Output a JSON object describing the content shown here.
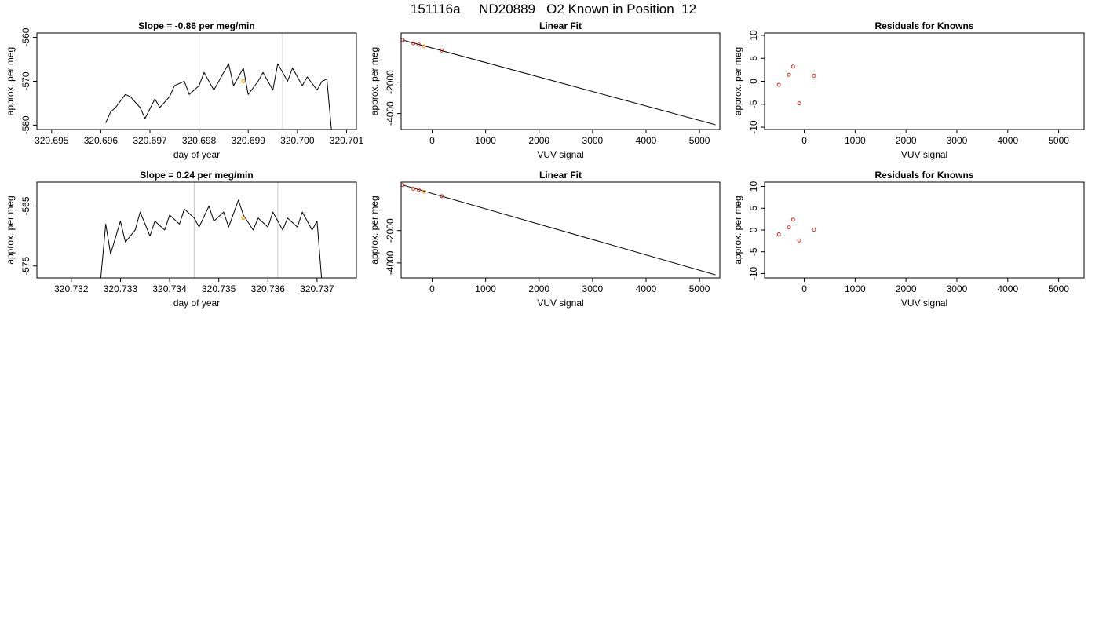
{
  "page_title": "151116a     ND20889   O2 Known in Position  12",
  "colors": {
    "line": "#000000",
    "marker_known": "#d62d20",
    "marker_unknown": "#ff8c00",
    "window_line": "#c8c8c8"
  },
  "chart_data": [
    {
      "id": "ts1",
      "type": "line",
      "title": "Slope =  -0.86  per meg/min",
      "xlabel": "day of year",
      "ylabel": "approx. per meg",
      "xlim": [
        320.6947,
        320.7012
      ],
      "ylim": [
        -581,
        -559
      ],
      "xticks": [
        320.695,
        320.696,
        320.697,
        320.698,
        320.699,
        320.7,
        320.701
      ],
      "xtick_labels": [
        "320.695",
        "320.696",
        "320.697",
        "320.698",
        "320.699",
        "320.700",
        "320.701"
      ],
      "yticks": [
        -580,
        -570,
        -560
      ],
      "ytick_labels": [
        "-580",
        "-570",
        "-560"
      ],
      "window_lines": [
        320.698,
        320.6997
      ],
      "series": [
        {
          "color": "#000000",
          "x": [
            320.6961,
            320.6962,
            320.6963,
            320.6965,
            320.6966,
            320.6968,
            320.6969,
            320.6971,
            320.6972,
            320.6974,
            320.6975,
            320.6977,
            320.6978,
            320.698,
            320.6981,
            320.6983,
            320.6984,
            320.6986,
            320.6987,
            320.6989,
            320.699,
            320.6992,
            320.6993,
            320.6995,
            320.6996,
            320.6998,
            320.6999,
            320.7001,
            320.7002,
            320.7004,
            320.7005,
            320.7006,
            320.7007
          ],
          "values": [
            -579.5,
            -577.0,
            -576.0,
            -573.0,
            -573.5,
            -576.0,
            -578.5,
            -574.0,
            -576.0,
            -573.5,
            -571.0,
            -570.0,
            -573.0,
            -571.0,
            -568.0,
            -572.0,
            -570.0,
            -566.0,
            -571.0,
            -567.0,
            -573.0,
            -570.0,
            -568.0,
            -572.0,
            -566.0,
            -570.0,
            -567.0,
            -571.0,
            -569.0,
            -572.0,
            -570.0,
            -569.5,
            -582.0
          ]
        },
        {
          "color": "#ff8c00",
          "x": [
            320.6989
          ],
          "values": [
            -570.0
          ],
          "kind": "points"
        }
      ]
    },
    {
      "id": "fit1",
      "type": "scatter",
      "title": "Linear Fit",
      "xlabel": "VUV signal",
      "ylabel": "approx. per meg",
      "xlim": [
        -580,
        5380
      ],
      "ylim": [
        -5020,
        1130
      ],
      "xticks": [
        0,
        1000,
        2000,
        3000,
        4000,
        5000
      ],
      "xtick_labels": [
        "0",
        "1000",
        "2000",
        "3000",
        "4000",
        "5000"
      ],
      "yticks": [
        -4000,
        -2000
      ],
      "ytick_labels": [
        "-4000",
        "-2000"
      ],
      "fit_line": {
        "x": [
          -550,
          5300
        ],
        "y": [
          680,
          -4720
        ]
      },
      "series": [
        {
          "color": "#d62d20",
          "x": [
            -550,
            -350,
            -250,
            180
          ],
          "values": [
            680,
            470,
            390,
            20
          ],
          "kind": "points"
        },
        {
          "color": "#ff8c00",
          "x": [
            -150
          ],
          "values": [
            280
          ],
          "kind": "points"
        }
      ]
    },
    {
      "id": "res1",
      "type": "scatter",
      "title": "Residuals for Knowns",
      "xlabel": "VUV signal",
      "ylabel": "approx. per meg",
      "xlim": [
        -780,
        5500
      ],
      "ylim": [
        -10.5,
        10.5
      ],
      "xticks": [
        0,
        1000,
        2000,
        3000,
        4000,
        5000
      ],
      "xtick_labels": [
        "0",
        "1000",
        "2000",
        "3000",
        "4000",
        "5000"
      ],
      "yticks": [
        -10,
        -5,
        0,
        5,
        10
      ],
      "ytick_labels": [
        "-10",
        "-5",
        "0",
        "5",
        "10"
      ],
      "series": [
        {
          "color": "#d62d20",
          "x": [
            -500,
            -300,
            -220,
            -100,
            190
          ],
          "values": [
            -0.8,
            1.4,
            3.2,
            -4.8,
            1.2
          ],
          "kind": "points"
        }
      ]
    },
    {
      "id": "ts2",
      "type": "line",
      "title": "Slope =  0.24  per meg/min",
      "xlabel": "day of year",
      "ylabel": "approx. per meg",
      "xlim": [
        320.7313,
        320.7378
      ],
      "ylim": [
        -577,
        -561
      ],
      "xticks": [
        320.732,
        320.733,
        320.734,
        320.735,
        320.736,
        320.737
      ],
      "xtick_labels": [
        "320.732",
        "320.733",
        "320.734",
        "320.735",
        "320.736",
        "320.737"
      ],
      "yticks": [
        -575,
        -565
      ],
      "ytick_labels": [
        "-575",
        "-565"
      ],
      "window_lines": [
        320.7345,
        320.7362
      ],
      "series": [
        {
          "color": "#000000",
          "x": [
            320.7326,
            320.7327,
            320.7328,
            320.733,
            320.7331,
            320.7333,
            320.7334,
            320.7336,
            320.7337,
            320.7339,
            320.734,
            320.7342,
            320.7343,
            320.7345,
            320.7346,
            320.7348,
            320.7349,
            320.7351,
            320.7352,
            320.7354,
            320.7355,
            320.7357,
            320.7358,
            320.736,
            320.7361,
            320.7363,
            320.7364,
            320.7366,
            320.7367,
            320.7369,
            320.737,
            320.7371
          ],
          "values": [
            -577.0,
            -568.0,
            -573.0,
            -567.5,
            -571.0,
            -569.0,
            -566.0,
            -570.0,
            -567.5,
            -569.0,
            -566.5,
            -568.0,
            -565.5,
            -567.0,
            -568.5,
            -565.0,
            -567.5,
            -566.0,
            -568.5,
            -564.0,
            -566.5,
            -569.0,
            -567.0,
            -568.5,
            -566.0,
            -569.0,
            -567.0,
            -568.5,
            -566.0,
            -569.0,
            -567.5,
            -578.0
          ]
        },
        {
          "color": "#ff8c00",
          "x": [
            320.7355
          ],
          "values": [
            -567.0
          ],
          "kind": "points"
        }
      ]
    },
    {
      "id": "fit2",
      "type": "scatter",
      "title": "Linear Fit",
      "xlabel": "VUV signal",
      "ylabel": "approx. per meg",
      "xlim": [
        -580,
        5380
      ],
      "ylim": [
        -4930,
        1000
      ],
      "xticks": [
        0,
        1000,
        2000,
        3000,
        4000,
        5000
      ],
      "xtick_labels": [
        "0",
        "1000",
        "2000",
        "3000",
        "4000",
        "5000"
      ],
      "yticks": [
        -4000,
        -2000
      ],
      "ytick_labels": [
        "-4000",
        "-2000"
      ],
      "fit_line": {
        "x": [
          -550,
          5300
        ],
        "y": [
          820,
          -4740
        ]
      },
      "series": [
        {
          "color": "#d62d20",
          "x": [
            -550,
            -350,
            -250,
            180
          ],
          "values": [
            820,
            590,
            520,
            130
          ],
          "kind": "points"
        },
        {
          "color": "#ff8c00",
          "x": [
            -150
          ],
          "values": [
            410
          ],
          "kind": "points"
        }
      ]
    },
    {
      "id": "res2",
      "type": "scatter",
      "title": "Residuals for Knowns",
      "xlabel": "VUV signal",
      "ylabel": "approx. per meg",
      "xlim": [
        -780,
        5500
      ],
      "ylim": [
        -11,
        11
      ],
      "xticks": [
        0,
        1000,
        2000,
        3000,
        4000,
        5000
      ],
      "xtick_labels": [
        "0",
        "1000",
        "2000",
        "3000",
        "4000",
        "5000"
      ],
      "yticks": [
        -10,
        -5,
        0,
        5,
        10
      ],
      "ytick_labels": [
        "-10",
        "-5",
        "0",
        "5",
        "10"
      ],
      "series": [
        {
          "color": "#d62d20",
          "x": [
            -500,
            -300,
            -220,
            -100,
            190
          ],
          "values": [
            -1.0,
            0.6,
            2.4,
            -2.4,
            0.1
          ],
          "kind": "points"
        }
      ]
    }
  ]
}
